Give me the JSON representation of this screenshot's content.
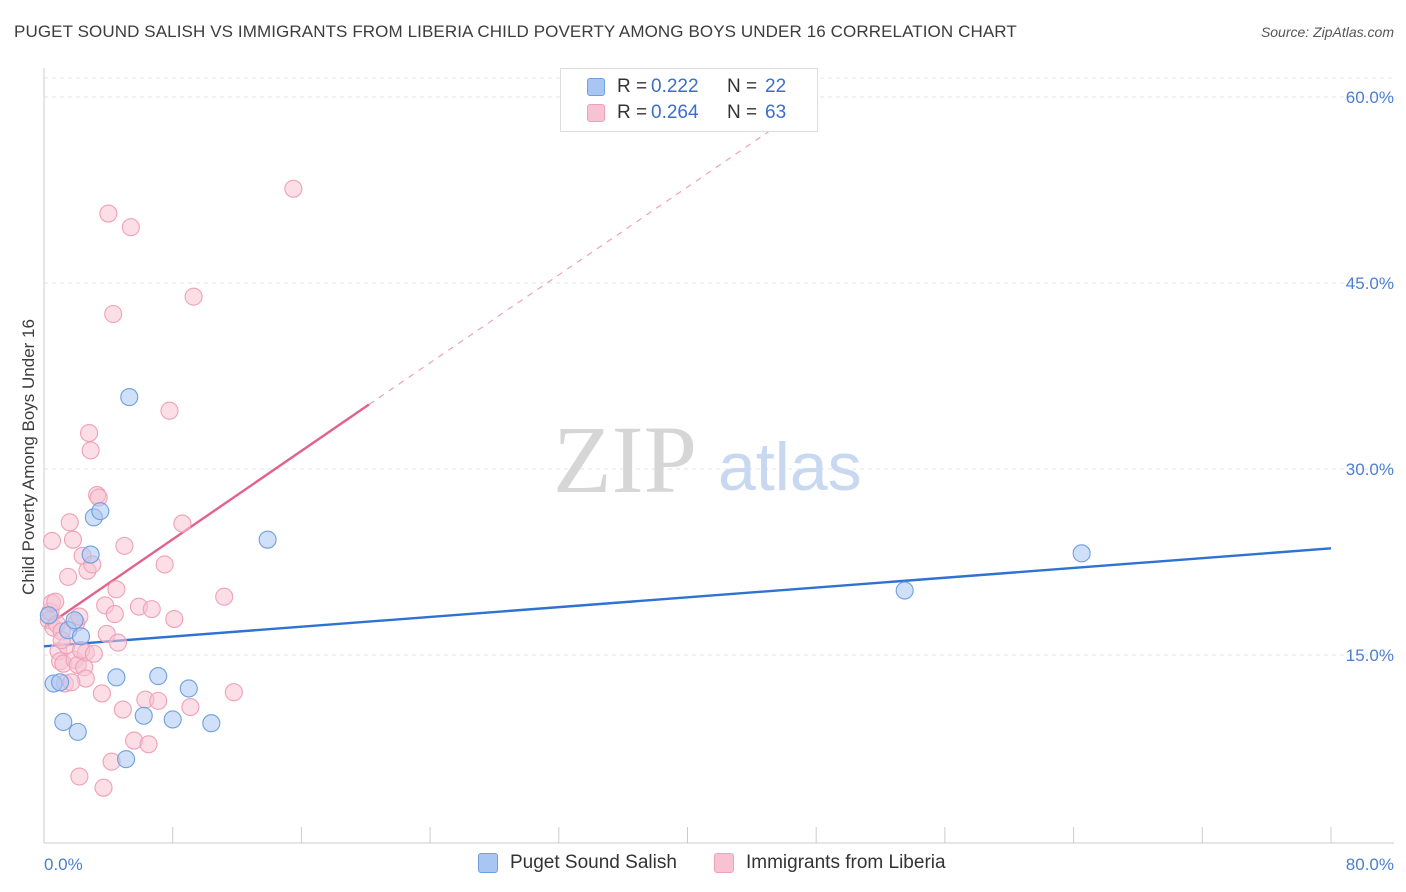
{
  "title": "PUGET SOUND SALISH VS IMMIGRANTS FROM LIBERIA CHILD POVERTY AMONG BOYS UNDER 16 CORRELATION CHART",
  "source": "Source: ZipAtlas.com",
  "watermark": {
    "zip": "ZIP",
    "atlas": "atlas"
  },
  "chart_data": {
    "type": "scatter",
    "title": "PUGET SOUND SALISH VS IMMIGRANTS FROM LIBERIA CHILD POVERTY AMONG BOYS UNDER 16 CORRELATION CHART",
    "xlabel": "",
    "ylabel": "Child Poverty Among Boys Under 16",
    "xlim": [
      0,
      80
    ],
    "ylim": [
      0,
      63
    ],
    "x_tick_labels": [
      "0.0%",
      "80.0%"
    ],
    "y_ticks": [
      15,
      30,
      45,
      60
    ],
    "y_tick_labels": [
      "15.0%",
      "30.0%",
      "45.0%",
      "60.0%"
    ],
    "legend_position": "top-center",
    "series": [
      {
        "name": "Puget Sound Salish",
        "color": "#6f9fe0",
        "fill": "#a9c6f2",
        "line_color": "#2e72d2",
        "r": "0.222",
        "n": "22",
        "trend": {
          "x": [
            0,
            80
          ],
          "y": [
            15.7,
            23.6
          ]
        },
        "points": [
          [
            0.3,
            18.2
          ],
          [
            0.6,
            12.7
          ],
          [
            1.0,
            12.8
          ],
          [
            1.2,
            9.6
          ],
          [
            1.5,
            17.0
          ],
          [
            1.9,
            17.8
          ],
          [
            2.1,
            8.8
          ],
          [
            2.3,
            16.5
          ],
          [
            2.9,
            23.1
          ],
          [
            3.1,
            26.1
          ],
          [
            3.5,
            26.6
          ],
          [
            4.5,
            13.2
          ],
          [
            5.1,
            6.6
          ],
          [
            5.3,
            35.8
          ],
          [
            6.2,
            10.1
          ],
          [
            7.1,
            13.3
          ],
          [
            8.0,
            9.8
          ],
          [
            9.0,
            12.3
          ],
          [
            10.4,
            9.5
          ],
          [
            13.9,
            24.3
          ],
          [
            53.5,
            20.2
          ],
          [
            64.5,
            23.2
          ]
        ]
      },
      {
        "name": "Immigrants from Liberia",
        "color": "#f0a0b8",
        "fill": "#f7c3d2",
        "line_color": "#e2628c",
        "r": "0.264",
        "n": "63",
        "trend": {
          "x": [
            0,
            20.2
          ],
          "y": [
            17.2,
            35.2
          ]
        },
        "trend_ext": {
          "x": [
            20.2,
            46.5
          ],
          "y": [
            35.2,
            58.5
          ]
        },
        "points": [
          [
            0.3,
            17.8
          ],
          [
            0.4,
            18.5
          ],
          [
            0.5,
            19.2
          ],
          [
            0.5,
            24.2
          ],
          [
            0.6,
            17.2
          ],
          [
            0.7,
            19.3
          ],
          [
            0.8,
            17.5
          ],
          [
            0.9,
            15.3
          ],
          [
            1.0,
            14.5
          ],
          [
            1.1,
            16.9
          ],
          [
            1.2,
            14.3
          ],
          [
            1.3,
            12.7
          ],
          [
            1.4,
            15.8
          ],
          [
            1.5,
            21.3
          ],
          [
            1.6,
            25.7
          ],
          [
            1.8,
            24.3
          ],
          [
            1.9,
            14.6
          ],
          [
            2.0,
            17.6
          ],
          [
            2.1,
            14.2
          ],
          [
            2.2,
            18.1
          ],
          [
            2.4,
            23.0
          ],
          [
            2.5,
            14.0
          ],
          [
            2.6,
            13.1
          ],
          [
            2.7,
            21.8
          ],
          [
            2.8,
            32.9
          ],
          [
            2.9,
            31.5
          ],
          [
            3.0,
            22.3
          ],
          [
            2.2,
            5.2
          ],
          [
            3.3,
            27.9
          ],
          [
            3.4,
            27.7
          ],
          [
            3.6,
            11.9
          ],
          [
            3.7,
            4.3
          ],
          [
            3.8,
            19.0
          ],
          [
            3.9,
            16.7
          ],
          [
            4.0,
            50.6
          ],
          [
            4.2,
            6.4
          ],
          [
            4.3,
            42.5
          ],
          [
            4.4,
            18.3
          ],
          [
            4.5,
            20.3
          ],
          [
            4.6,
            16.0
          ],
          [
            4.9,
            10.6
          ],
          [
            5.0,
            23.8
          ],
          [
            5.4,
            49.5
          ],
          [
            5.6,
            8.1
          ],
          [
            5.9,
            18.9
          ],
          [
            6.3,
            11.4
          ],
          [
            6.5,
            7.8
          ],
          [
            6.7,
            18.7
          ],
          [
            7.1,
            11.3
          ],
          [
            7.5,
            22.3
          ],
          [
            7.8,
            34.7
          ],
          [
            8.1,
            17.9
          ],
          [
            8.6,
            25.6
          ],
          [
            9.1,
            10.8
          ],
          [
            9.3,
            43.9
          ],
          [
            11.2,
            19.7
          ],
          [
            11.8,
            12.0
          ],
          [
            15.5,
            52.6
          ],
          [
            2.6,
            15.2
          ],
          [
            2.3,
            15.4
          ],
          [
            3.1,
            15.1
          ],
          [
            1.7,
            12.8
          ],
          [
            1.1,
            16.2
          ]
        ]
      }
    ]
  },
  "legend": {
    "rows": [
      {
        "r_label": "R =",
        "r_value": "0.222",
        "n_label": "N =",
        "n_value": "22"
      },
      {
        "r_label": "R =",
        "r_value": "0.264",
        "n_label": "N =",
        "n_value": "63"
      }
    ]
  },
  "bottom_legend": [
    "Puget Sound Salish",
    "Immigrants from Liberia"
  ]
}
